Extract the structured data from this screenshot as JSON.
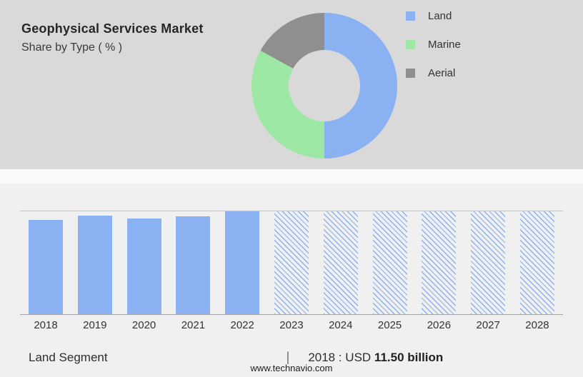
{
  "header": {
    "title": "Geophysical Services Market",
    "subtitle": "Share by Type ( % )"
  },
  "colors": {
    "land_blue": "#8ab1f2",
    "marine_green": "#9ee8a5",
    "aerial_gray": "#8f8f8f",
    "hero_background": "#d9d9d9",
    "section_background": "#f0f0f0"
  },
  "chart_data": [
    {
      "type": "pie",
      "donut": true,
      "title": "Geophysical Services Market — Share by Type ( % )",
      "labels": [
        "Land",
        "Marine",
        "Aerial"
      ],
      "values": [
        50,
        33,
        17
      ],
      "colors": [
        "#8ab1f2",
        "#9ee8a5",
        "#8f8f8f"
      ],
      "legend_position": "right"
    },
    {
      "type": "bar",
      "categories": [
        "2018",
        "2019",
        "2020",
        "2021",
        "2022",
        "2023",
        "2024",
        "2025",
        "2026",
        "2027",
        "2028"
      ],
      "relative_values": [
        92,
        96,
        93,
        95,
        100,
        100,
        100,
        100,
        100,
        100,
        100
      ],
      "solid_years": [
        "2018",
        "2019",
        "2020",
        "2021",
        "2022"
      ],
      "forecast_years": [
        "2023",
        "2024",
        "2025",
        "2026",
        "2027",
        "2028"
      ],
      "bar_color": "#8ab1f2",
      "hatch_color": "#8ab1f2",
      "annotation": "2018 : USD 11.50 billion",
      "xlabel": "",
      "ylabel": "",
      "grid": false
    }
  ],
  "caption": {
    "segment_label": "Land Segment",
    "separator": "|",
    "value_prefix": "2018 : USD ",
    "value_bold": "11.50 billion"
  },
  "footer": {
    "website": "www.technavio.com"
  }
}
